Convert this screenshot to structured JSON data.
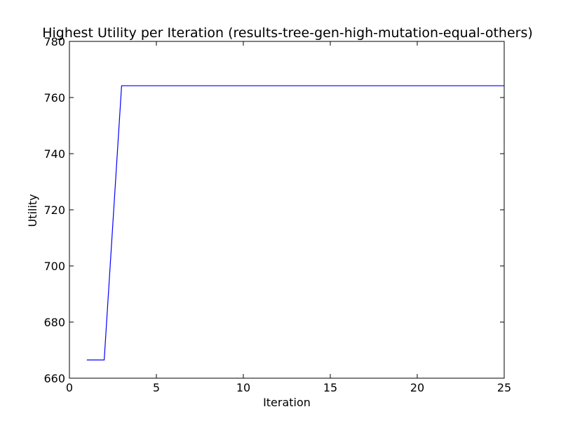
{
  "chart_data": {
    "type": "line",
    "title": "Highest Utility per Iteration (results-tree-gen-high-mutation-equal-others)",
    "xlabel": "Iteration",
    "ylabel": "Utility",
    "xlim": [
      0,
      25
    ],
    "ylim": [
      660,
      780
    ],
    "xticks": [
      0,
      5,
      10,
      15,
      20,
      25
    ],
    "yticks": [
      660,
      680,
      700,
      720,
      740,
      760,
      780
    ],
    "grid": false,
    "series": [
      {
        "color": "#0000ff",
        "x": [
          1,
          2,
          3,
          4,
          5,
          6,
          7,
          8,
          9,
          10,
          11,
          12,
          13,
          14,
          15,
          16,
          17,
          18,
          19,
          20,
          21,
          22,
          23,
          24,
          25
        ],
        "y": [
          666.5,
          666.5,
          764.2,
          764.2,
          764.2,
          764.2,
          764.2,
          764.2,
          764.2,
          764.2,
          764.2,
          764.2,
          764.2,
          764.2,
          764.2,
          764.2,
          764.2,
          764.2,
          764.2,
          764.2,
          764.2,
          764.2,
          764.2,
          764.2,
          764.2
        ]
      }
    ]
  }
}
